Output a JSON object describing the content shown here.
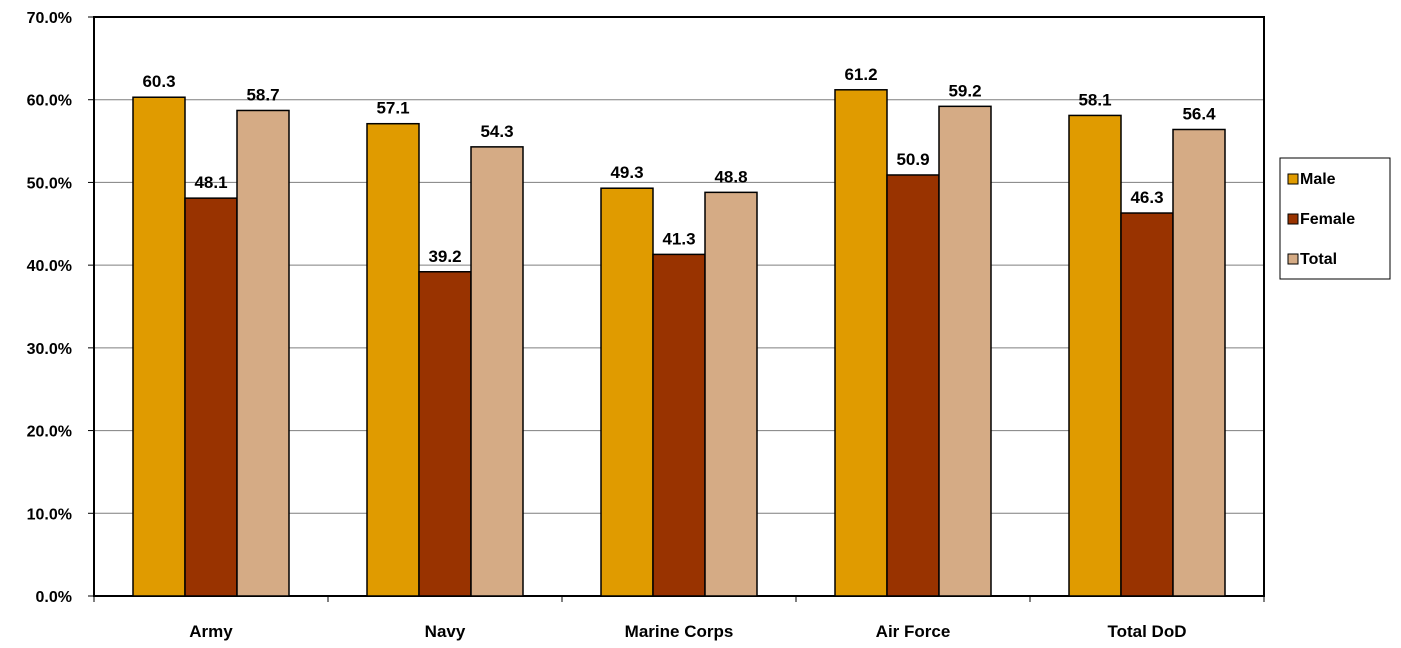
{
  "chart_data": {
    "type": "bar",
    "title": "",
    "xlabel": "",
    "ylabel": "",
    "ylim": [
      0,
      70
    ],
    "y_tick_step": 10,
    "y_tick_format": "percent_one_decimal",
    "grid": "horizontal",
    "legend_position": "right",
    "categories": [
      "Army",
      "Navy",
      "Marine Corps",
      "Air Force",
      "Total DoD"
    ],
    "series": [
      {
        "name": "Male",
        "color": "#E09B00",
        "values": [
          60.3,
          57.1,
          49.3,
          61.2,
          58.1
        ]
      },
      {
        "name": "Female",
        "color": "#993300",
        "values": [
          48.1,
          39.2,
          41.3,
          50.9,
          46.3
        ]
      },
      {
        "name": "Total",
        "color": "#D5AB85",
        "values": [
          58.7,
          54.3,
          48.8,
          59.2,
          56.4
        ]
      }
    ],
    "data_labels": true
  }
}
